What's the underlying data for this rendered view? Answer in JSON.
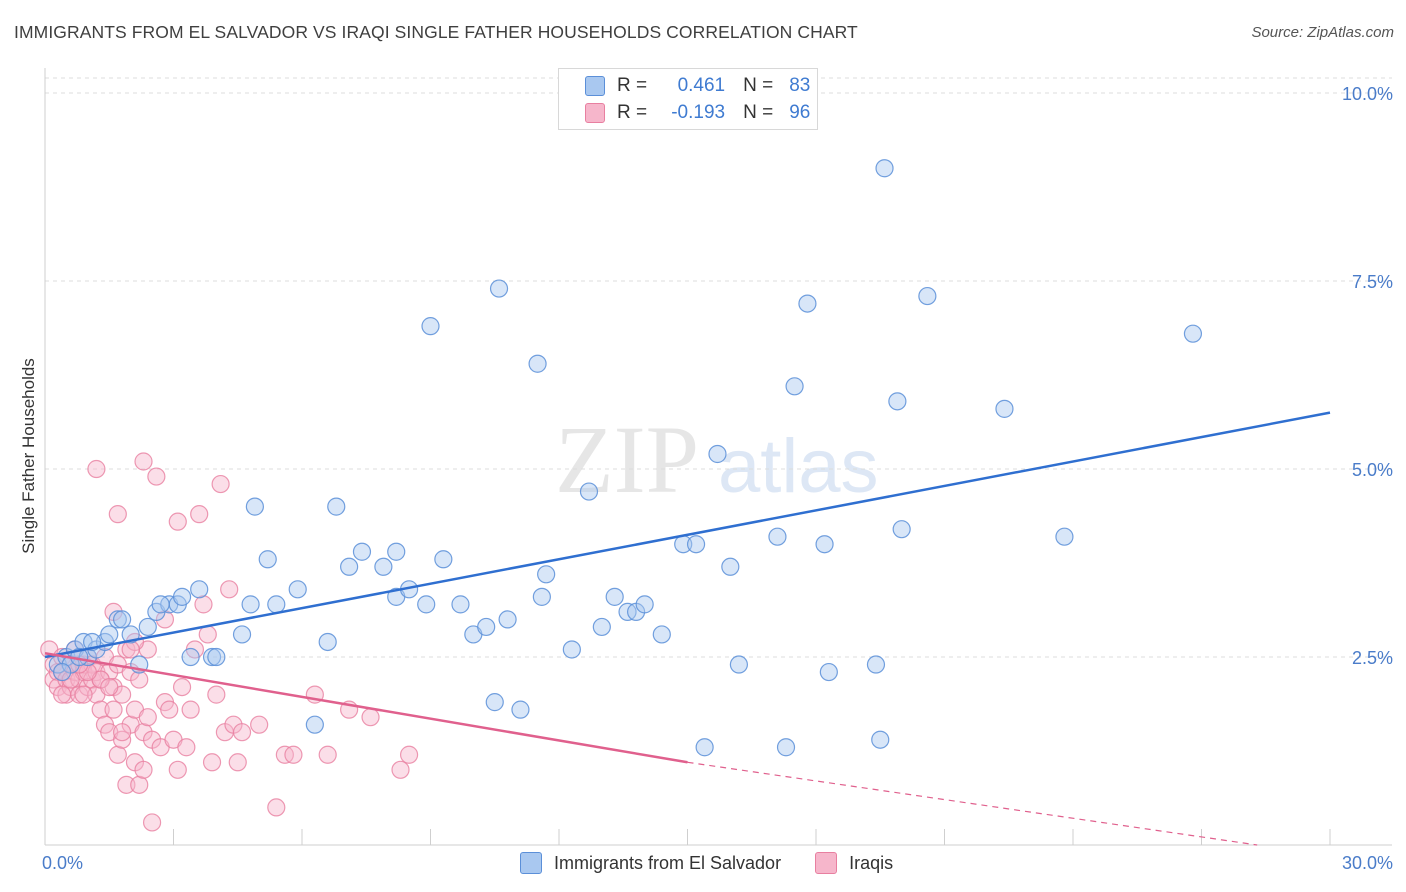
{
  "title": "IMMIGRANTS FROM EL SALVADOR VS IRAQI SINGLE FATHER HOUSEHOLDS CORRELATION CHART",
  "source": "Source: ZipAtlas.com",
  "watermark": {
    "zip": "ZIP",
    "atlas": "atlas"
  },
  "legend": {
    "r_label": "R =",
    "n_label": "N =",
    "series1": {
      "r": "0.461",
      "n": "83"
    },
    "series2": {
      "r": "-0.193",
      "n": "96"
    }
  },
  "bottom_legend": {
    "series1": "Immigrants from El Salvador",
    "series2": "Iraqis"
  },
  "colors": {
    "blue_fill": "#a9c8f0",
    "blue_stroke": "#5b8fd8",
    "blue_line": "#2f6fd0",
    "pink_fill": "#f6b6cb",
    "pink_stroke": "#e87fa0",
    "pink_line": "#e0608d",
    "grid": "#dcdcdc",
    "tick_text": "#4a7cc9"
  },
  "chart_data": {
    "type": "scatter",
    "title": "IMMIGRANTS FROM EL SALVADOR VS IRAQI SINGLE FATHER HOUSEHOLDS CORRELATION CHART",
    "xlabel": "",
    "ylabel": "Single Father Households",
    "xlim": [
      0,
      30
    ],
    "ylim": [
      0,
      10.2
    ],
    "x_tick_labels": [
      {
        "value": 0,
        "label": "0.0%"
      },
      {
        "value": 30,
        "label": "30.0%"
      }
    ],
    "y_tick_labels": [
      {
        "value": 2.5,
        "label": "2.5%"
      },
      {
        "value": 5.0,
        "label": "5.0%"
      },
      {
        "value": 7.5,
        "label": "7.5%"
      },
      {
        "value": 10.0,
        "label": "10.0%"
      }
    ],
    "series": [
      {
        "name": "Immigrants from El Salvador",
        "r": 0.461,
        "n": 83,
        "trend": {
          "x": [
            0,
            30
          ],
          "y": [
            2.5,
            5.75
          ]
        },
        "points": [
          [
            0.3,
            2.4
          ],
          [
            0.5,
            2.5
          ],
          [
            0.6,
            2.4
          ],
          [
            0.7,
            2.6
          ],
          [
            0.9,
            2.7
          ],
          [
            1.0,
            2.5
          ],
          [
            1.2,
            2.6
          ],
          [
            1.4,
            2.7
          ],
          [
            1.5,
            2.8
          ],
          [
            1.7,
            3.0
          ],
          [
            1.8,
            3.0
          ],
          [
            2.0,
            2.8
          ],
          [
            2.2,
            2.4
          ],
          [
            2.4,
            2.9
          ],
          [
            2.6,
            3.1
          ],
          [
            2.9,
            3.2
          ],
          [
            3.1,
            3.2
          ],
          [
            3.4,
            2.5
          ],
          [
            3.9,
            2.5
          ],
          [
            4.0,
            2.5
          ],
          [
            3.6,
            3.4
          ],
          [
            4.6,
            2.8
          ],
          [
            4.8,
            3.2
          ],
          [
            5.4,
            3.2
          ],
          [
            5.9,
            3.4
          ],
          [
            6.3,
            1.6
          ],
          [
            6.6,
            2.7
          ],
          [
            7.1,
            3.7
          ],
          [
            7.4,
            3.9
          ],
          [
            7.9,
            3.7
          ],
          [
            8.2,
            3.9
          ],
          [
            8.2,
            3.3
          ],
          [
            8.5,
            3.4
          ],
          [
            8.9,
            3.2
          ],
          [
            9.3,
            3.8
          ],
          [
            9.7,
            3.2
          ],
          [
            10.0,
            2.8
          ],
          [
            10.3,
            2.9
          ],
          [
            10.5,
            1.9
          ],
          [
            10.8,
            3.0
          ],
          [
            11.1,
            1.8
          ],
          [
            11.6,
            3.3
          ],
          [
            11.7,
            3.6
          ],
          [
            12.3,
            2.6
          ],
          [
            12.7,
            4.7
          ],
          [
            13.0,
            2.9
          ],
          [
            13.3,
            3.3
          ],
          [
            13.6,
            3.1
          ],
          [
            13.8,
            3.1
          ],
          [
            14.0,
            3.2
          ],
          [
            14.4,
            2.8
          ],
          [
            14.9,
            4.0
          ],
          [
            15.2,
            4.0
          ],
          [
            15.4,
            1.3
          ],
          [
            15.7,
            5.2
          ],
          [
            16.0,
            3.7
          ],
          [
            16.2,
            2.4
          ],
          [
            17.1,
            4.1
          ],
          [
            17.5,
            6.1
          ],
          [
            17.8,
            7.2
          ],
          [
            17.3,
            1.3
          ],
          [
            18.2,
            4.0
          ],
          [
            18.3,
            2.3
          ],
          [
            19.4,
            2.4
          ],
          [
            19.5,
            1.4
          ],
          [
            19.6,
            9.0
          ],
          [
            19.9,
            5.9
          ],
          [
            20.0,
            4.2
          ],
          [
            20.6,
            7.3
          ],
          [
            22.4,
            5.8
          ],
          [
            23.8,
            4.1
          ],
          [
            26.8,
            6.8
          ],
          [
            9.0,
            6.9
          ],
          [
            10.6,
            7.4
          ],
          [
            11.5,
            6.4
          ],
          [
            4.9,
            4.5
          ],
          [
            5.2,
            3.8
          ],
          [
            6.8,
            4.5
          ],
          [
            0.4,
            2.3
          ],
          [
            0.8,
            2.5
          ],
          [
            1.1,
            2.7
          ],
          [
            2.7,
            3.2
          ],
          [
            3.2,
            3.3
          ]
        ]
      },
      {
        "name": "Iraqis",
        "r": -0.193,
        "n": 96,
        "trend": {
          "x": [
            0,
            15.0
          ],
          "y": [
            2.55,
            1.1
          ]
        },
        "trend_dashed": {
          "x": [
            15.0,
            28.3
          ],
          "y": [
            1.1,
            0.0
          ]
        },
        "points": [
          [
            0.1,
            2.6
          ],
          [
            0.2,
            2.4
          ],
          [
            0.2,
            2.2
          ],
          [
            0.3,
            2.3
          ],
          [
            0.3,
            2.1
          ],
          [
            0.4,
            2.5
          ],
          [
            0.4,
            2.3
          ],
          [
            0.5,
            2.0
          ],
          [
            0.5,
            2.2
          ],
          [
            0.6,
            2.4
          ],
          [
            0.6,
            2.1
          ],
          [
            0.7,
            2.3
          ],
          [
            0.7,
            2.6
          ],
          [
            0.8,
            2.2
          ],
          [
            0.8,
            2.0
          ],
          [
            0.9,
            2.4
          ],
          [
            0.9,
            2.3
          ],
          [
            1.0,
            2.1
          ],
          [
            1.0,
            2.5
          ],
          [
            1.1,
            2.2
          ],
          [
            1.1,
            2.4
          ],
          [
            1.2,
            2.3
          ],
          [
            1.2,
            2.0
          ],
          [
            1.3,
            2.2
          ],
          [
            1.3,
            1.8
          ],
          [
            1.4,
            2.5
          ],
          [
            1.4,
            1.6
          ],
          [
            1.5,
            2.3
          ],
          [
            1.5,
            1.5
          ],
          [
            1.6,
            2.1
          ],
          [
            1.6,
            1.8
          ],
          [
            1.7,
            2.4
          ],
          [
            1.7,
            1.2
          ],
          [
            1.8,
            2.0
          ],
          [
            1.8,
            1.4
          ],
          [
            1.9,
            2.6
          ],
          [
            1.9,
            0.8
          ],
          [
            2.0,
            2.3
          ],
          [
            2.0,
            1.6
          ],
          [
            2.1,
            1.8
          ],
          [
            2.1,
            1.1
          ],
          [
            2.2,
            2.2
          ],
          [
            2.2,
            0.8
          ],
          [
            2.3,
            1.5
          ],
          [
            2.3,
            1.0
          ],
          [
            2.4,
            2.6
          ],
          [
            2.4,
            1.7
          ],
          [
            2.5,
            1.4
          ],
          [
            2.5,
            0.3
          ],
          [
            2.6,
            4.9
          ],
          [
            2.7,
            1.3
          ],
          [
            2.8,
            1.9
          ],
          [
            2.9,
            1.8
          ],
          [
            3.0,
            1.4
          ],
          [
            3.1,
            1.0
          ],
          [
            3.2,
            2.1
          ],
          [
            3.3,
            1.3
          ],
          [
            3.4,
            1.8
          ],
          [
            3.5,
            2.6
          ],
          [
            3.6,
            4.4
          ],
          [
            3.7,
            3.2
          ],
          [
            3.8,
            2.8
          ],
          [
            3.9,
            1.1
          ],
          [
            4.0,
            2.0
          ],
          [
            4.1,
            4.8
          ],
          [
            4.2,
            1.5
          ],
          [
            4.3,
            3.4
          ],
          [
            4.4,
            1.6
          ],
          [
            4.5,
            1.1
          ],
          [
            4.6,
            1.5
          ],
          [
            5.0,
            1.6
          ],
          [
            5.4,
            0.5
          ],
          [
            5.6,
            1.2
          ],
          [
            5.8,
            1.2
          ],
          [
            6.3,
            2.0
          ],
          [
            6.6,
            1.2
          ],
          [
            7.1,
            1.8
          ],
          [
            7.6,
            1.7
          ],
          [
            8.3,
            1.0
          ],
          [
            8.5,
            1.2
          ],
          [
            1.2,
            5.0
          ],
          [
            2.3,
            5.1
          ],
          [
            1.7,
            4.4
          ],
          [
            2.8,
            3.0
          ],
          [
            3.1,
            4.3
          ],
          [
            2.1,
            2.7
          ],
          [
            1.3,
            2.2
          ],
          [
            0.4,
            2.0
          ],
          [
            0.6,
            2.2
          ],
          [
            0.9,
            2.0
          ],
          [
            1.6,
            3.1
          ],
          [
            2.0,
            2.6
          ],
          [
            1.0,
            2.3
          ],
          [
            0.8,
            2.4
          ],
          [
            1.5,
            2.1
          ],
          [
            1.8,
            1.5
          ]
        ]
      }
    ]
  }
}
